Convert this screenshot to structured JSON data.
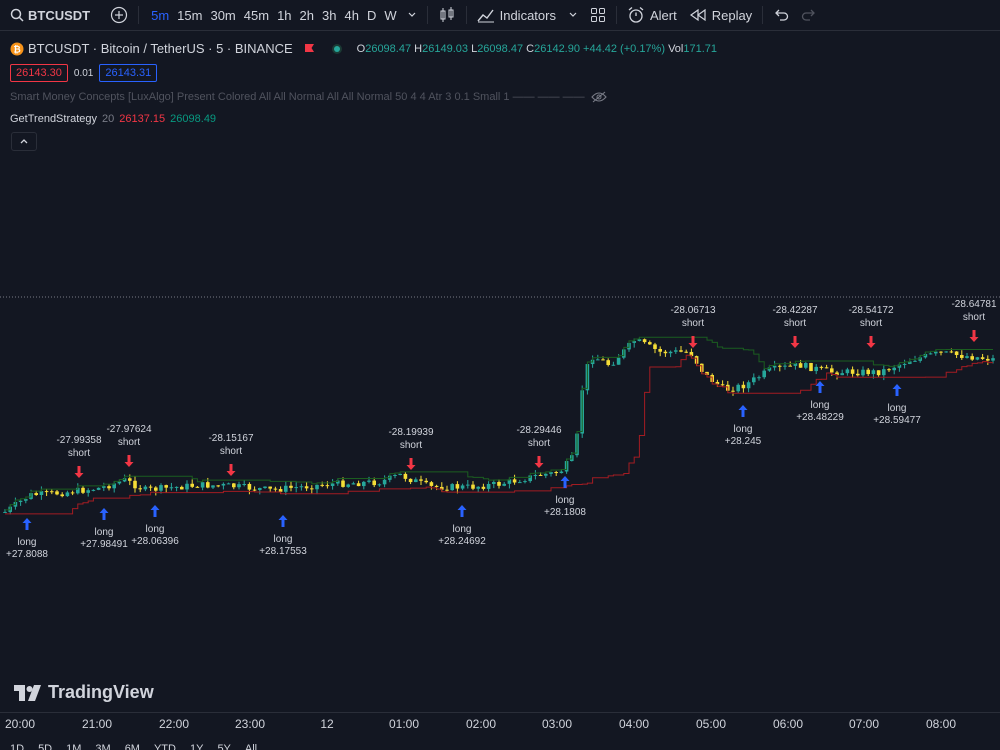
{
  "toolbar": {
    "symbol": "BTCUSDT",
    "intervals": [
      "5m",
      "15m",
      "30m",
      "45m",
      "1h",
      "2h",
      "3h",
      "4h",
      "D",
      "W"
    ],
    "active_interval": "5m",
    "indicators_label": "Indicators",
    "alert_label": "Alert",
    "replay_label": "Replay"
  },
  "legend": {
    "title": "BTCUSDT · Bitcoin / TetherUS · 5 · BINANCE",
    "o_label": "O",
    "o": "26098.47",
    "h_label": "H",
    "h": "26149.03",
    "l_label": "L",
    "l": "26098.47",
    "c_label": "C",
    "c": "26142.90",
    "change": "+44.42 (+0.17%)",
    "vol_label": "Vol",
    "vol": "171.71",
    "sell_price": "26143.30",
    "spread": "0.01",
    "buy_price": "26143.31",
    "smc_indicator": "Smart Money Concepts [LuxAlgo] Present Colored All All Normal All All Normal 50 4 4 Atr 3 0.1 Small 1 —— —— ——",
    "strategy_name": "GetTrendStrategy",
    "strategy_len": "20",
    "strategy_upper": "26137.15",
    "strategy_lower": "26098.49"
  },
  "colors": {
    "background": "#131722",
    "up": "#26a69a",
    "down": "#f5dd37",
    "short_arrow": "#f23645",
    "long_arrow": "#2962ff",
    "upper_line": "#a31c22",
    "lower_line": "#1b5e20"
  },
  "watermark": "TradingView",
  "time_axis": [
    "20:00",
    "21:00",
    "22:00",
    "23:00",
    "12",
    "01:00",
    "02:00",
    "03:00",
    "04:00",
    "05:00",
    "06:00",
    "07:00",
    "08:00"
  ],
  "bottom_bar": [
    "1D",
    "5D",
    "1M",
    "3M",
    "6M",
    "YTD",
    "1Y",
    "5Y",
    "All"
  ],
  "chart_data": {
    "type": "candlestick",
    "title": "BTCUSDT · 5",
    "signals": [
      {
        "type": "long",
        "label": "long",
        "value": "+27.8088"
      },
      {
        "type": "short",
        "label": "short",
        "value": "-27.99358"
      },
      {
        "type": "long",
        "label": "long",
        "value": "+27.98491"
      },
      {
        "type": "short",
        "label": "short",
        "value": "-27.97624"
      },
      {
        "type": "long",
        "label": "long",
        "value": "+28.06396"
      },
      {
        "type": "short",
        "label": "short",
        "value": "-28.15167"
      },
      {
        "type": "long",
        "label": "long",
        "value": "+28.17553"
      },
      {
        "type": "short",
        "label": "short",
        "value": "-28.19939"
      },
      {
        "type": "long",
        "label": "long",
        "value": "+28.24692"
      },
      {
        "type": "short",
        "label": "short",
        "value": "-28.29446"
      },
      {
        "type": "long",
        "label": "long",
        "value": "+28.1808"
      },
      {
        "type": "short",
        "label": "short",
        "value": "-28.06713"
      },
      {
        "type": "long",
        "label": "long",
        "value": "+28.245"
      },
      {
        "type": "short",
        "label": "short",
        "value": "-28.42287"
      },
      {
        "type": "long",
        "label": "long",
        "value": "+28.48229"
      },
      {
        "type": "short",
        "label": "short",
        "value": "-28.54172"
      },
      {
        "type": "long",
        "label": "long",
        "value": "+28.59477"
      },
      {
        "type": "short",
        "label": "short",
        "value": "-28.64781"
      }
    ]
  }
}
